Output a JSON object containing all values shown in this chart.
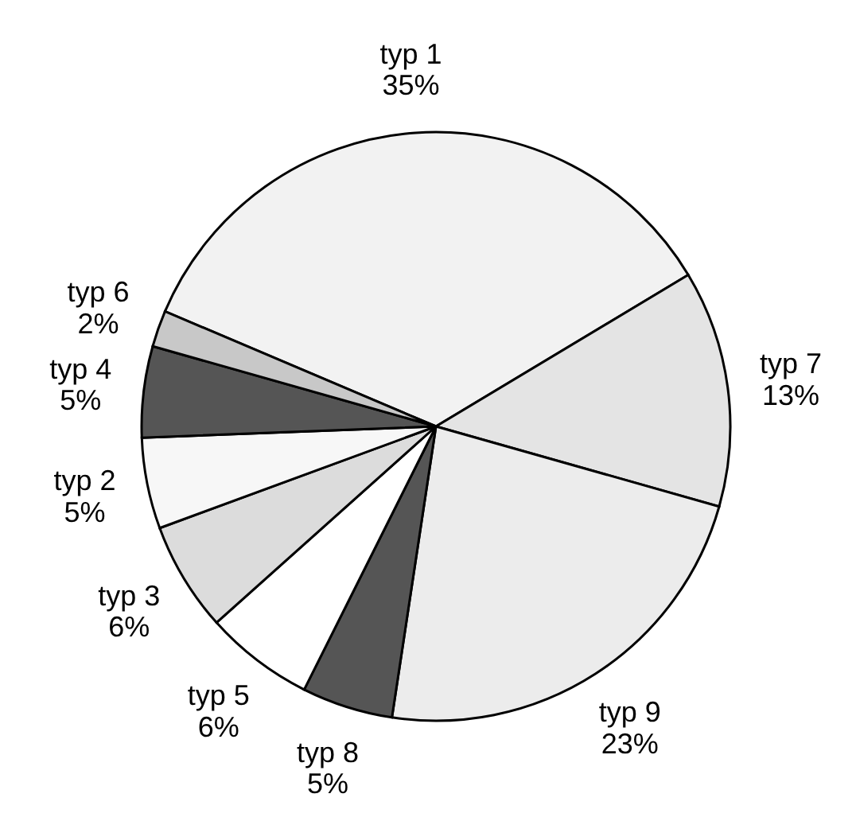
{
  "chart_data": {
    "type": "pie",
    "categories": [
      "typ 1",
      "typ 7",
      "typ 9",
      "typ 8",
      "typ 5",
      "typ 3",
      "typ 2",
      "typ 4",
      "typ 6"
    ],
    "values": [
      35,
      13,
      23,
      5,
      6,
      6,
      5,
      5,
      2
    ],
    "value_labels": [
      "35%",
      "13%",
      "23%",
      "5%",
      "6%",
      "6%",
      "5%",
      "5%",
      "2%"
    ],
    "colors": [
      "#f2f2f2",
      "#e4e4e4",
      "#ececec",
      "#555555",
      "#ffffff",
      "#dcdcdc",
      "#f7f7f7",
      "#555555",
      "#c8c8c8"
    ],
    "legend": false
  }
}
